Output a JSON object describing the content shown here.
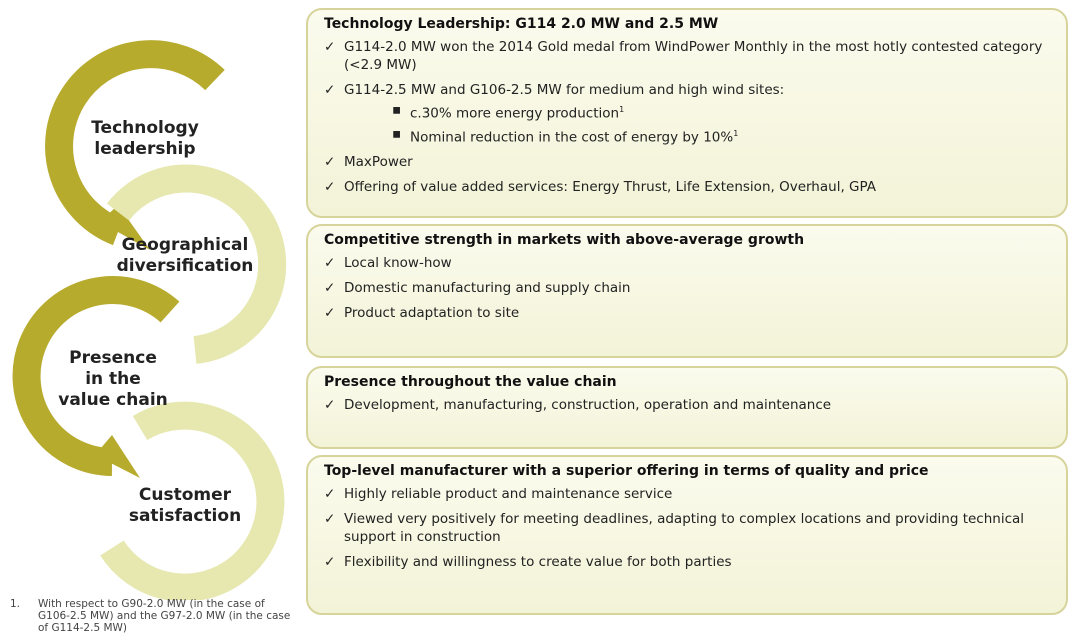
{
  "cycle": [
    "Technology leadership",
    "Geographical diversification",
    "Presence in the value chain",
    "Customer satisfaction"
  ],
  "panels": [
    {
      "title": "Technology Leadership: G114 2.0 MW and 2.5 MW",
      "items": [
        {
          "text": "G114-2.0 MW won the 2014 Gold medal from WindPower Monthly in the most hotly contested category (<2.9 MW)"
        },
        {
          "text": "G114-2.5 MW and G106-2.5 MW for medium and high wind sites:",
          "subitems": [
            {
              "text": "c.30% more energy production",
              "note": "1"
            },
            {
              "text": "Nominal reduction in the cost of energy by 10%",
              "note": "1"
            }
          ]
        },
        {
          "text": "MaxPower"
        },
        {
          "text": "Offering of value added services: Energy Thrust, Life Extension, Overhaul, GPA"
        }
      ]
    },
    {
      "title": "Competitive strength in markets with above-average growth",
      "items": [
        {
          "text": "Local know-how"
        },
        {
          "text": "Domestic manufacturing and supply chain"
        },
        {
          "text": "Product adaptation to site"
        }
      ]
    },
    {
      "title": "Presence throughout the value chain",
      "items": [
        {
          "text": "Development, manufacturing, construction, operation and maintenance"
        }
      ]
    },
    {
      "title": "Top-level manufacturer with a superior offering in terms of quality and price",
      "items": [
        {
          "text": "Highly reliable product and maintenance service"
        },
        {
          "text": "Viewed very positively for meeting deadlines, adapting to complex locations and providing technical support in construction"
        },
        {
          "text": "Flexibility and willingness to create value for both parties"
        }
      ]
    }
  ],
  "footnote": {
    "number": "1.",
    "text": "With respect to G90-2.0 MW (in the case of G106-2.5 MW) and the G97-2.0 MW (in the case of G114-2.5 MW)"
  }
}
